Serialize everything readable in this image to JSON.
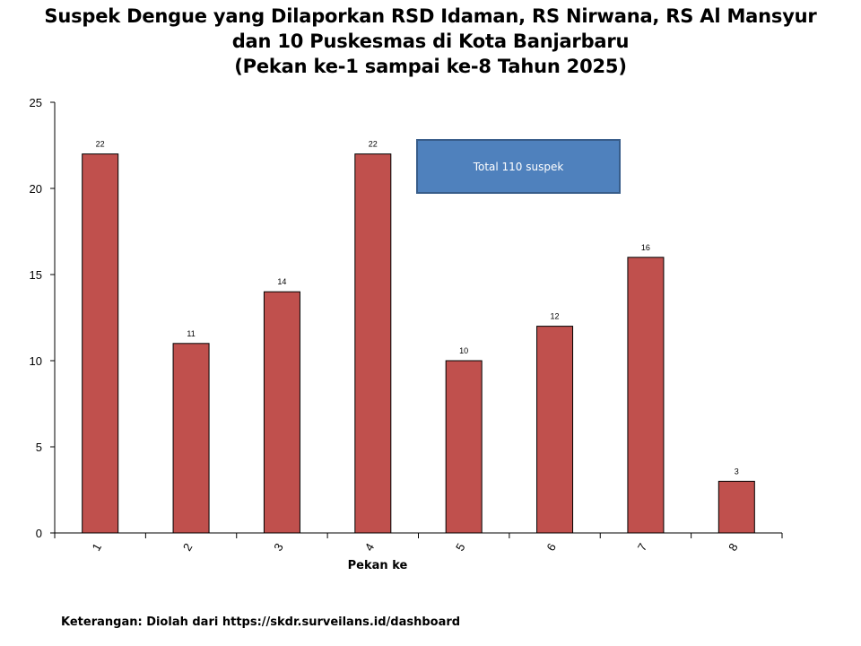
{
  "chart_data": {
    "type": "bar",
    "title_lines": [
      "Suspek Dengue yang Dilaporkan RSD Idaman, RS Nirwana, RS Al Mansyur",
      "dan 10 Puskesmas di Kota Banjarbaru",
      "(Pekan ke-1 sampai ke-8 Tahun 2025)"
    ],
    "xlabel": "Pekan ke",
    "ylabel": "",
    "categories": [
      "1",
      "2",
      "3",
      "4",
      "5",
      "6",
      "7",
      "8"
    ],
    "values": [
      22,
      11,
      14,
      22,
      10,
      12,
      16,
      3
    ],
    "data_labels": [
      "22",
      "11",
      "14",
      "22",
      "10",
      "12",
      "16",
      "3"
    ],
    "ylim": [
      0,
      25
    ],
    "yticks": [
      0,
      5,
      10,
      15,
      20,
      25
    ],
    "grid": false,
    "bar_color": "#c0504d",
    "bar_border_color": "#000000",
    "annotation": {
      "text": "Total 110 suspek",
      "fill_color": "#4f81bd",
      "border_color": "#385d8a"
    }
  },
  "footer": "Keterangan: Diolah dari https://skdr.surveilans.id/dashboard"
}
